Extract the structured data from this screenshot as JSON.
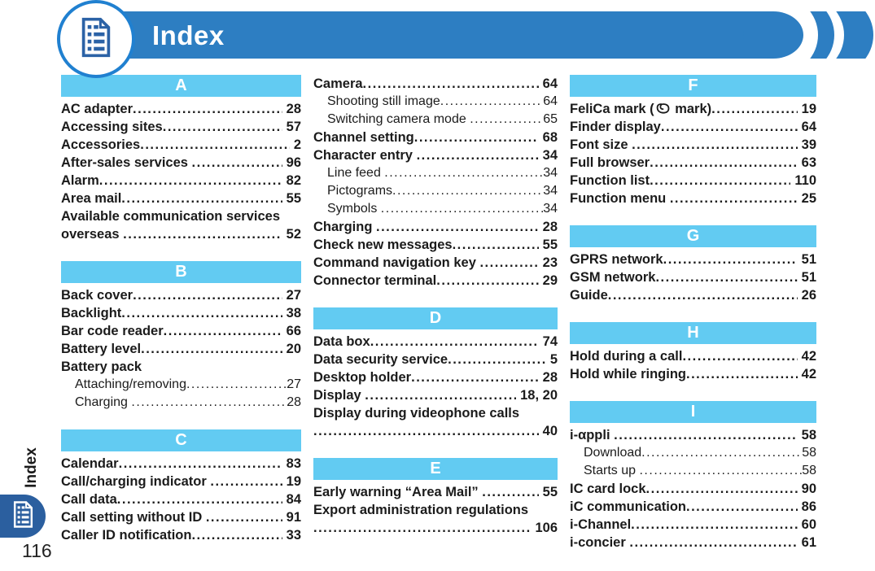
{
  "header": {
    "title": "Index",
    "icon": "document-list-icon"
  },
  "sidebar": {
    "label": "Index",
    "icon": "document-list-icon",
    "page_number": "116"
  },
  "colors": {
    "header_bar": "#2d7ec2",
    "section_bar": "#62cbf2",
    "tab": "#2b5f9f",
    "icon_blue": "#2b62a6",
    "ring_blue": "#2080d0",
    "text": "#1b1b1b"
  },
  "columns": [
    {
      "sections": [
        {
          "letter": "A",
          "entries": [
            {
              "label": "AC adapter",
              "page": "28",
              "style": "main"
            },
            {
              "label": "Accessing sites",
              "page": "57",
              "style": "main"
            },
            {
              "label": "Accessories",
              "page": "2",
              "style": "main"
            },
            {
              "label": "After-sales services ",
              "page": "96",
              "style": "main"
            },
            {
              "label": "Alarm",
              "page": "82",
              "style": "main"
            },
            {
              "label": "Area mail",
              "page": "55",
              "style": "main"
            },
            {
              "label": "Available communication services",
              "page": "",
              "style": "main-nodots"
            },
            {
              "label": "overseas ",
              "page": "52",
              "style": "main"
            }
          ]
        },
        {
          "letter": "B",
          "entries": [
            {
              "label": "Back cover",
              "page": "27",
              "style": "main"
            },
            {
              "label": "Backlight",
              "page": "38",
              "style": "main"
            },
            {
              "label": "Bar code reader",
              "page": "66",
              "style": "main"
            },
            {
              "label": "Battery level",
              "page": "20",
              "style": "main"
            },
            {
              "label": "Battery pack",
              "page": "",
              "style": "main-nodots"
            },
            {
              "label": "Attaching/removing",
              "page": "27",
              "style": "sub"
            },
            {
              "label": "Charging ",
              "page": "28",
              "style": "sub"
            }
          ]
        },
        {
          "letter": "C",
          "entries": [
            {
              "label": "Calendar",
              "page": "83",
              "style": "main"
            },
            {
              "label": "Call/charging indicator ",
              "page": "19",
              "style": "main"
            },
            {
              "label": "Call data",
              "page": "84",
              "style": "main"
            },
            {
              "label": "Call setting without ID ",
              "page": "91",
              "style": "main"
            },
            {
              "label": "Caller ID notification",
              "page": "33",
              "style": "main"
            }
          ]
        }
      ]
    },
    {
      "sections": [
        {
          "letter": null,
          "entries": [
            {
              "label": "Camera",
              "page": "64",
              "style": "main"
            },
            {
              "label": "Shooting still image",
              "page": "64",
              "style": "sub"
            },
            {
              "label": "Switching camera mode ",
              "page": "65",
              "style": "sub"
            },
            {
              "label": "Channel setting",
              "page": "68",
              "style": "main"
            },
            {
              "label": "Character entry ",
              "page": "34",
              "style": "main"
            },
            {
              "label": "Line feed ",
              "page": "34",
              "style": "sub"
            },
            {
              "label": "Pictograms",
              "page": "34",
              "style": "sub"
            },
            {
              "label": "Symbols ",
              "page": "34",
              "style": "sub"
            },
            {
              "label": "Charging ",
              "page": "28",
              "style": "main"
            },
            {
              "label": "Check new messages",
              "page": "55",
              "style": "main"
            },
            {
              "label": "Command navigation key ",
              "page": "23",
              "style": "main"
            },
            {
              "label": "Connector terminal",
              "page": "29",
              "style": "main"
            }
          ]
        },
        {
          "letter": "D",
          "entries": [
            {
              "label": "Data box",
              "page": "74",
              "style": "main"
            },
            {
              "label": "Data security service",
              "page": "5",
              "style": "main"
            },
            {
              "label": "Desktop holder",
              "page": "28",
              "style": "main"
            },
            {
              "label": "Display ",
              "page": "18, 20",
              "style": "main"
            },
            {
              "label": "Display during videophone calls",
              "page": "",
              "style": "main-nodots"
            },
            {
              "label": "",
              "page": "40",
              "style": "main"
            }
          ]
        },
        {
          "letter": "E",
          "entries": [
            {
              "label": "Early warning “Area Mail” ",
              "page": "55",
              "style": "main"
            },
            {
              "label": "Export administration regulations",
              "page": "",
              "style": "main-nodots"
            },
            {
              "label": "",
              "page": "106",
              "style": "main"
            }
          ]
        }
      ]
    },
    {
      "sections": [
        {
          "letter": "F",
          "entries": [
            {
              "label": "FeliCa mark (",
              "icon": "felica-mark-icon",
              "label_after": " mark)",
              "page": "19",
              "style": "main"
            },
            {
              "label": "Finder display",
              "page": "64",
              "style": "main"
            },
            {
              "label": "Font size ",
              "page": "39",
              "style": "main"
            },
            {
              "label": "Full browser",
              "page": "63",
              "style": "main"
            },
            {
              "label": "Function list",
              "page": "110",
              "style": "main"
            },
            {
              "label": "Function menu ",
              "page": "25",
              "style": "main"
            }
          ]
        },
        {
          "letter": "G",
          "entries": [
            {
              "label": "GPRS network",
              "page": "51",
              "style": "main"
            },
            {
              "label": "GSM network",
              "page": "51",
              "style": "main"
            },
            {
              "label": "Guide",
              "page": "26",
              "style": "main"
            }
          ]
        },
        {
          "letter": "H",
          "entries": [
            {
              "label": "Hold during a call",
              "page": "42",
              "style": "main"
            },
            {
              "label": "Hold while ringing",
              "page": "42",
              "style": "main"
            }
          ]
        },
        {
          "letter": "I",
          "entries": [
            {
              "label": "i-αppli ",
              "page": "58",
              "style": "main"
            },
            {
              "label": "Download",
              "page": "58",
              "style": "sub"
            },
            {
              "label": "Starts up ",
              "page": "58",
              "style": "sub"
            },
            {
              "label": "IC card lock",
              "page": "90",
              "style": "main"
            },
            {
              "label": "iC communication",
              "page": "86",
              "style": "main"
            },
            {
              "label": "i-Channel",
              "page": "60",
              "style": "main"
            },
            {
              "label": "i-concier ",
              "page": "61",
              "style": "main"
            }
          ]
        }
      ]
    }
  ]
}
